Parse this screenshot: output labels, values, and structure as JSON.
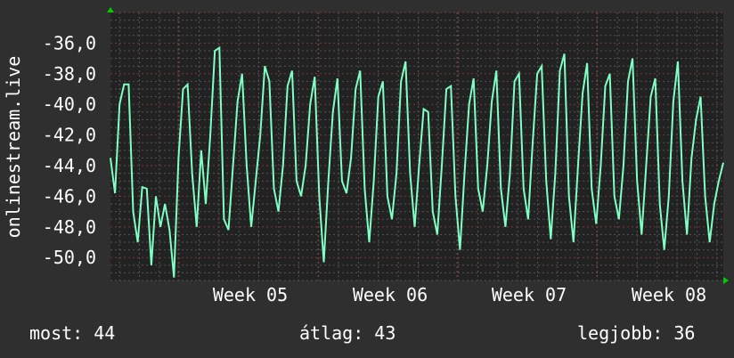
{
  "chart_data": {
    "type": "line",
    "ylabel": "onlinestream.live",
    "ylim": [
      -51.5,
      -34
    ],
    "yticks": [
      "-36,0",
      "-38,0",
      "-40,0",
      "-42,0",
      "-44,0",
      "-46,0",
      "-48,0",
      "-50,0"
    ],
    "ytick_values": [
      -36,
      -38,
      -40,
      -42,
      -44,
      -46,
      -48,
      -50
    ],
    "xtick_labels": [
      "Week 05",
      "Week 06",
      "Week 07",
      "Week 08"
    ],
    "grid": true,
    "series": [
      {
        "color": "#7fffc4",
        "values": [
          -43.5,
          -45.8,
          -40,
          -38.7,
          -38.7,
          -47,
          -49,
          -45.4,
          -45.5,
          -50.5,
          -46,
          -48,
          -46.5,
          -48.2,
          -51.3,
          -43.5,
          -39,
          -38.7,
          -44.5,
          -48,
          -43,
          -46.5,
          -42,
          -36.5,
          -36.3,
          -47.5,
          -48.2,
          -44,
          -39.8,
          -38,
          -44,
          -48,
          -45,
          -42,
          -37.5,
          -38.5,
          -45.5,
          -47,
          -44,
          -38.8,
          -37.8,
          -45,
          -46,
          -44,
          -40,
          -38.2,
          -46,
          -50.3,
          -45,
          -40.5,
          -38.3,
          -45,
          -45.8,
          -43.5,
          -39,
          -37.8,
          -45.5,
          -49,
          -45,
          -39.5,
          -38.5,
          -46,
          -47.5,
          -44.5,
          -38.5,
          -37.2,
          -44.5,
          -48,
          -44,
          -40.3,
          -40.5,
          -47,
          -48.5,
          -44,
          -39,
          -38.8,
          -46,
          -49.5,
          -44.5,
          -40,
          -38.3,
          -45.5,
          -47,
          -44,
          -39.8,
          -37.8,
          -45.5,
          -48,
          -44.5,
          -38.5,
          -38,
          -45.5,
          -47.5,
          -42.5,
          -38,
          -37.5,
          -45,
          -48.8,
          -44.5,
          -37.8,
          -36.7,
          -46,
          -49,
          -44,
          -39.3,
          -37.3,
          -45.5,
          -47.8,
          -44,
          -38.8,
          -38,
          -46,
          -47.5,
          -44,
          -38.5,
          -37,
          -45,
          -48.5,
          -44,
          -39.5,
          -38.3,
          -46.5,
          -49.5,
          -46,
          -39.8,
          -37.2,
          -45,
          -48.5,
          -43.5,
          -41,
          -39.5,
          -46,
          -49,
          -46.5,
          -45,
          -43.8
        ]
      }
    ]
  },
  "footer": {
    "current": "most: 44",
    "average": "átlag: 43",
    "best": "legjobb: 36"
  }
}
